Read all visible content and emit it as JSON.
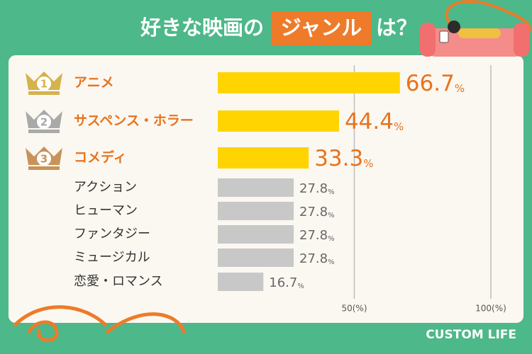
{
  "chart_data": {
    "type": "bar",
    "orientation": "horizontal",
    "title_parts": [
      "好きな映画の",
      "ジャンル",
      "は？"
    ],
    "categories": [
      "アニメ",
      "サスペンス・ホラー",
      "コメディ",
      "アクション",
      "ヒューマン",
      "ファンタジー",
      "ミュージカル",
      "恋愛・ロマンス"
    ],
    "values": [
      66.7,
      44.4,
      33.3,
      27.8,
      27.8,
      27.8,
      27.8,
      16.7
    ],
    "value_labels": [
      "66.7%",
      "44.4%",
      "33.3%",
      "27.8%",
      "27.8%",
      "27.8%",
      "27.8%",
      "16.7%"
    ],
    "colors": [
      "#ffd400",
      "#ffd400",
      "#ffd400",
      "#c8c8c8",
      "#c8c8c8",
      "#c8c8c8",
      "#c8c8c8",
      "#c8c8c8"
    ],
    "ranks": [
      "1",
      "2",
      "3"
    ],
    "rank_colors": [
      "#d6b24c",
      "#a9a9a9",
      "#c8925a"
    ],
    "xlim": [
      0,
      100
    ],
    "xticks": [
      {
        "value": 50,
        "label": "50(%)"
      },
      {
        "value": 100,
        "label": "100(%)"
      }
    ],
    "grid": true,
    "brand": "CUSTOM LIFE"
  }
}
